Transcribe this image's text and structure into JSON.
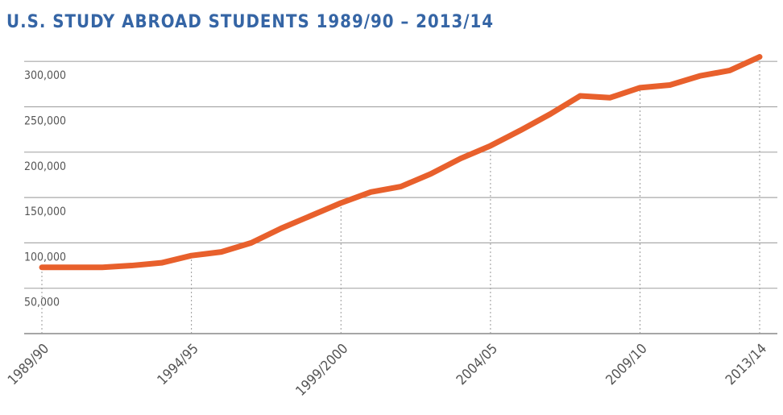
{
  "chart_data": {
    "type": "line",
    "title": "U.S. STUDY ABROAD STUDENTS 1989/90 – 2013/14",
    "categories": [
      "1989/90",
      null,
      null,
      null,
      null,
      "1994/95",
      null,
      null,
      null,
      null,
      "1999/2000",
      null,
      null,
      null,
      null,
      "2004/05",
      null,
      null,
      null,
      null,
      "2009/10",
      null,
      null,
      null,
      "2013/14"
    ],
    "series": [
      {
        "name": "U.S. study abroad students",
        "color": "#e8602c",
        "values": [
          73000,
          73000,
          73000,
          75000,
          78000,
          86000,
          90000,
          100000,
          116000,
          130000,
          144000,
          156000,
          162000,
          176000,
          193000,
          207000,
          224000,
          242000,
          262000,
          260000,
          271000,
          274000,
          284000,
          290000,
          305000
        ]
      }
    ],
    "ylim": [
      0,
      320000
    ],
    "yticks": [
      {
        "value": 50000,
        "label": "50,000"
      },
      {
        "value": 100000,
        "label": "100,000"
      },
      {
        "value": 150000,
        "label": "150,000"
      },
      {
        "value": 200000,
        "label": "200,000"
      },
      {
        "value": 250000,
        "label": "250,000"
      },
      {
        "value": 300000,
        "label": "300,000"
      }
    ],
    "grid": true
  }
}
